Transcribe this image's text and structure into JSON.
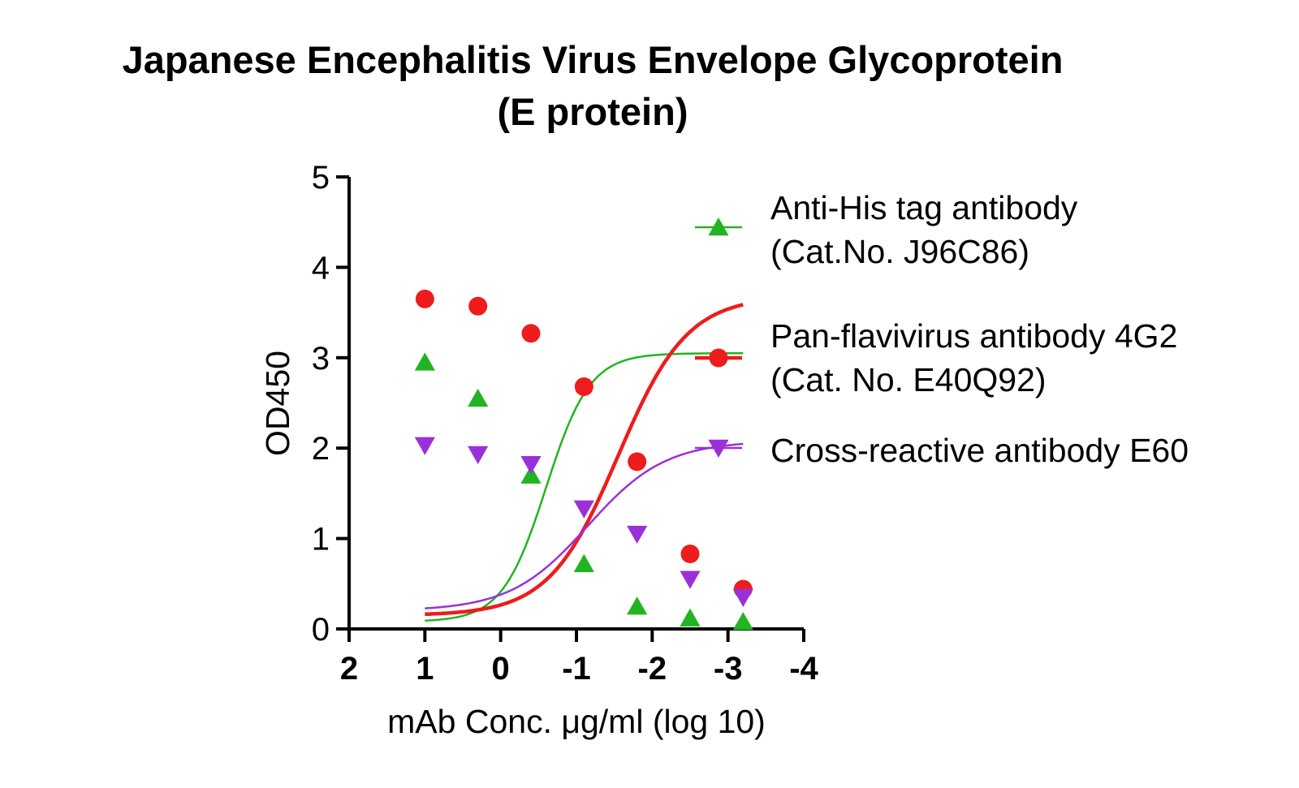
{
  "title_line1": "Japanese Encephalitis Virus Envelope Glycoprotein",
  "title_line2": "(E protein)",
  "chart_data": {
    "type": "line",
    "xlabel": "mAb Conc. μg/ml (log 10)",
    "ylabel": "OD450",
    "xlim": [
      2,
      -4
    ],
    "ylim": [
      0,
      5
    ],
    "xticks": [
      "2",
      "1",
      "0",
      "-1",
      "-2",
      "-3",
      "-4"
    ],
    "yticks": [
      "0",
      "1",
      "2",
      "3",
      "4",
      "5"
    ],
    "xtick_values": [
      2,
      1,
      0,
      -1,
      -2,
      -3,
      -4
    ],
    "ytick_values": [
      0,
      1,
      2,
      3,
      4,
      5
    ],
    "legend_placement": "top-right",
    "series": [
      {
        "name_line1": "Anti-His tag antibody",
        "name_line2": "(Cat.No. J96C86)",
        "marker": "triangle-up",
        "color": "#22b422",
        "x": [
          1,
          0.3,
          -0.4,
          -1.1,
          -1.8,
          -2.5,
          -3.2
        ],
        "y": [
          2.95,
          2.55,
          1.7,
          0.72,
          0.25,
          0.12,
          0.08
        ],
        "fit": {
          "bottom": 0.08,
          "top": 3.05,
          "logec50": -0.6,
          "hill": -1.5
        }
      },
      {
        "name_line1": "Pan-flavivirus antibody 4G2",
        "name_line2": "(Cat. No. E40Q92)",
        "marker": "circle",
        "color": "#ee1c1c",
        "x": [
          1,
          0.3,
          -0.4,
          -1.1,
          -1.8,
          -2.5,
          -3.2
        ],
        "y": [
          3.65,
          3.57,
          3.27,
          2.68,
          1.85,
          0.83,
          0.44
        ],
        "fit": {
          "bottom": 0.15,
          "top": 3.68,
          "logec50": -1.55,
          "hill": -0.95
        }
      },
      {
        "name_line1": "Cross-reactive antibody E60",
        "name_line2": "",
        "marker": "triangle-down",
        "color": "#9b30d9",
        "x": [
          1,
          0.3,
          -0.4,
          -1.1,
          -1.8,
          -2.5,
          -3.2
        ],
        "y": [
          2.03,
          1.93,
          1.82,
          1.33,
          1.05,
          0.55,
          0.35
        ],
        "fit": {
          "bottom": 0.2,
          "top": 2.08,
          "logec50": -1.15,
          "hill": -0.85
        }
      }
    ]
  }
}
